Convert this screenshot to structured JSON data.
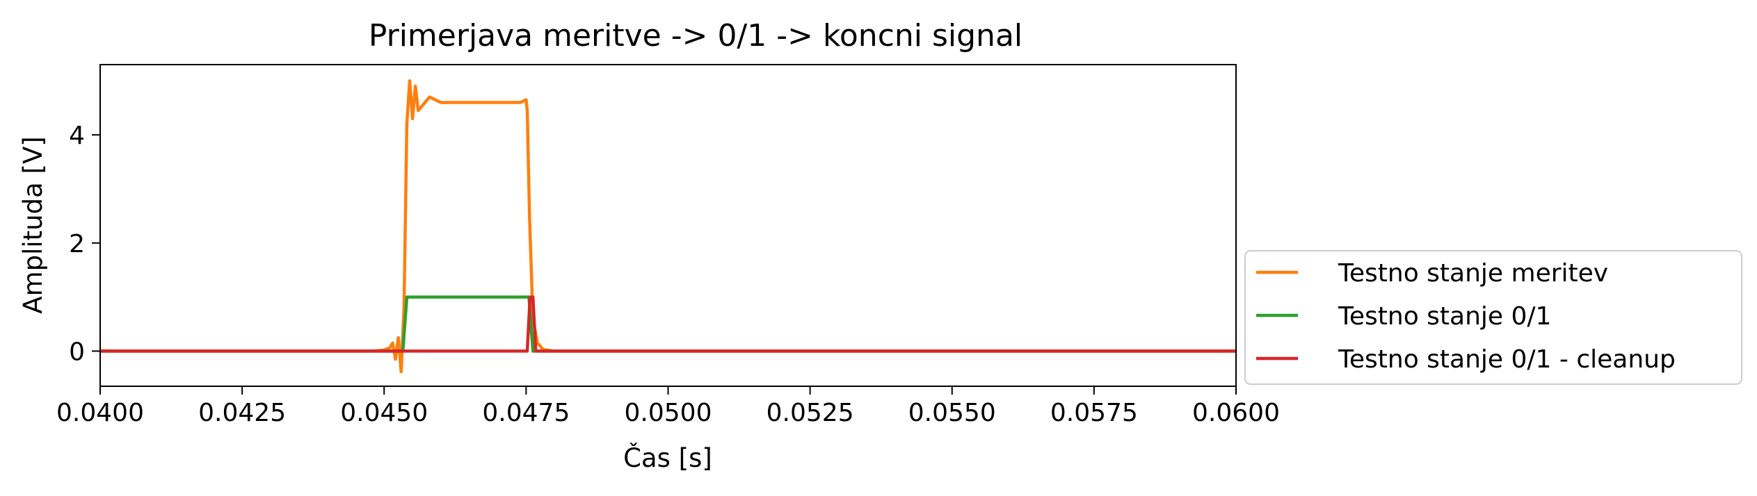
{
  "chart_data": {
    "type": "line",
    "title": "Primerjava meritve -> 0/1 -> koncni signal",
    "xlabel": "Čas [s]",
    "ylabel": "Amplituda [V]",
    "xlim": [
      0.04,
      0.06
    ],
    "ylim": [
      -0.65,
      5.3
    ],
    "xticks": [
      0.04,
      0.0425,
      0.045,
      0.0475,
      0.05,
      0.0525,
      0.055,
      0.0575,
      0.06
    ],
    "xtick_labels": [
      "0.0400",
      "0.0425",
      "0.0450",
      "0.0475",
      "0.0500",
      "0.0525",
      "0.0550",
      "0.0575",
      "0.0600"
    ],
    "yticks": [
      0,
      2,
      4
    ],
    "ytick_labels": [
      "0",
      "2",
      "4"
    ],
    "grid": false,
    "legend_position": "outside lower right",
    "series": [
      {
        "name": "Testno stanje meritev",
        "color": "#ff7f0e",
        "x": [
          0.04,
          0.0448,
          0.045,
          0.0451,
          0.04515,
          0.0452,
          0.04525,
          0.0453,
          0.04535,
          0.0454,
          0.04545,
          0.0455,
          0.04555,
          0.0456,
          0.0458,
          0.046,
          0.0465,
          0.047,
          0.0474,
          0.0475,
          0.04752,
          0.04756,
          0.04762,
          0.0477,
          0.0478,
          0.048,
          0.06
        ],
        "y": [
          0,
          0,
          0.02,
          0.06,
          0.15,
          -0.15,
          0.25,
          -0.38,
          0.8,
          4.2,
          5.0,
          4.3,
          4.9,
          4.45,
          4.7,
          4.6,
          4.6,
          4.6,
          4.6,
          4.65,
          4.45,
          2.5,
          0.6,
          0.15,
          0.03,
          0,
          0
        ]
      },
      {
        "name": "Testno stanje 0/1",
        "color": "#2ca02c",
        "x": [
          0.04,
          0.04533,
          0.0454,
          0.04755,
          0.04762,
          0.06
        ],
        "y": [
          0,
          0,
          1,
          1,
          0,
          0
        ]
      },
      {
        "name": "Testno stanje 0/1 - cleanup",
        "color": "#d62728",
        "x": [
          0.04,
          0.04752,
          0.04757,
          0.04762,
          0.04767,
          0.06
        ],
        "y": [
          0,
          0,
          1.0,
          1.0,
          0,
          0
        ]
      }
    ]
  }
}
